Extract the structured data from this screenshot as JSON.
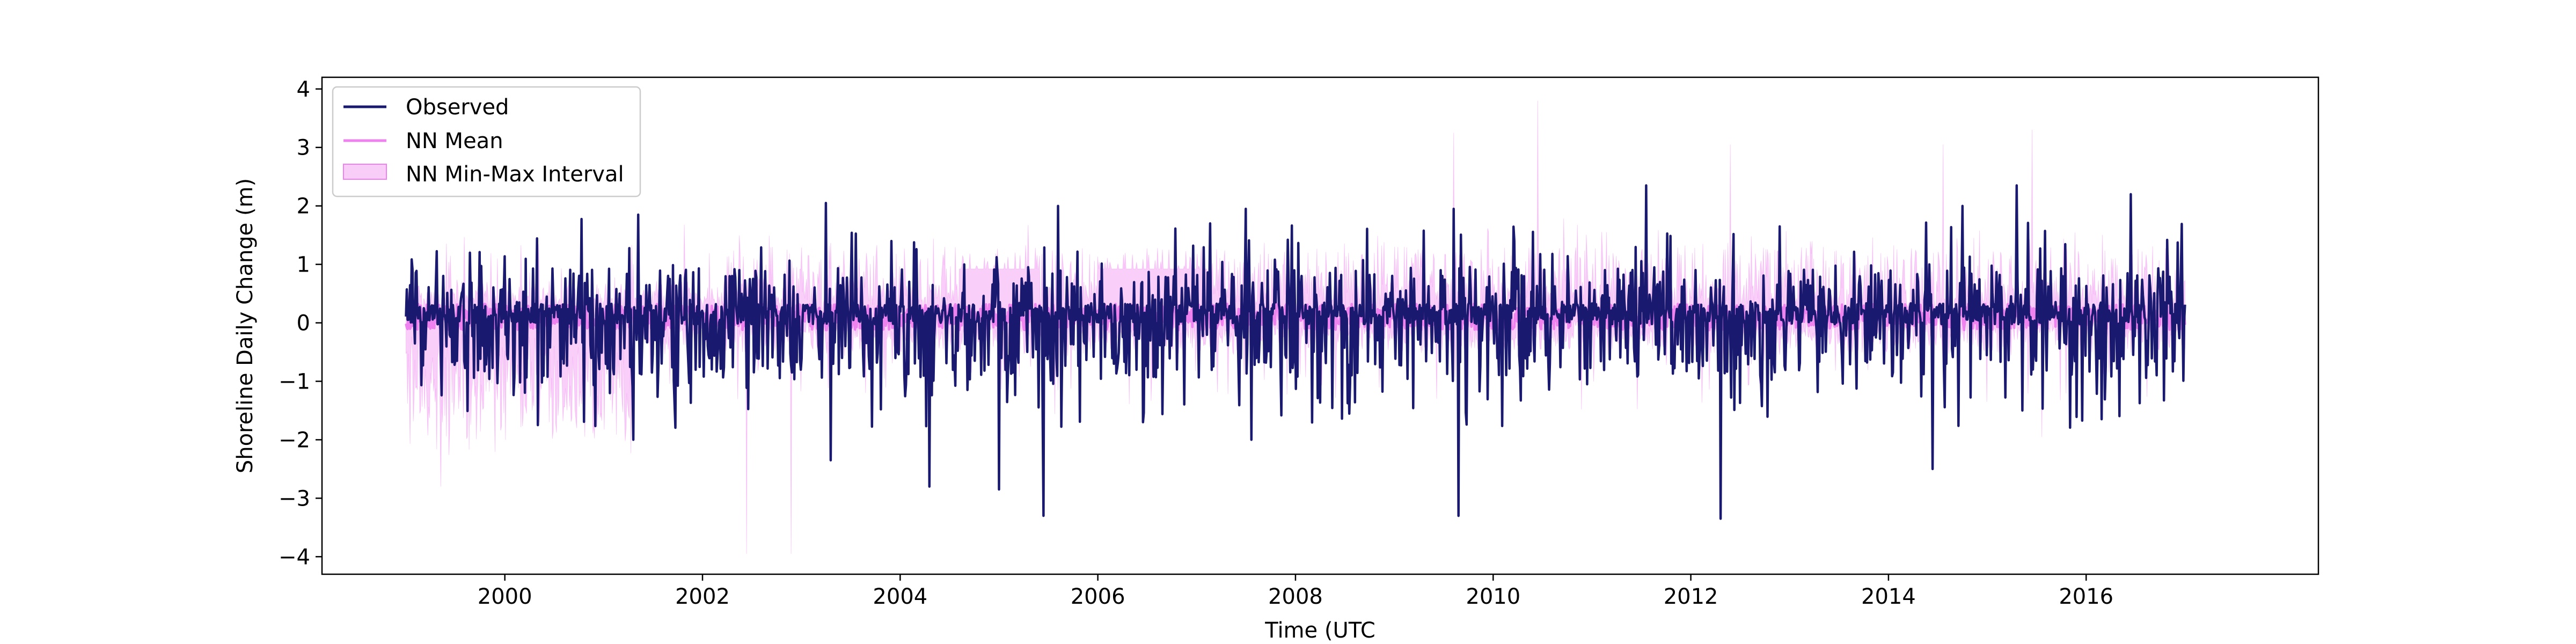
{
  "chart_data": {
    "type": "line",
    "xlabel": "Time (UTC",
    "ylabel": "Shoreline Daily Change (m)",
    "xlim": [
      1998.15,
      2018.35
    ],
    "ylim": [
      -4.3,
      4.2
    ],
    "x_ticks": [
      "2000",
      "2002",
      "2004",
      "2006",
      "2008",
      "2010",
      "2012",
      "2014",
      "2016"
    ],
    "x_tick_values": [
      2000,
      2002,
      2004,
      2006,
      2008,
      2010,
      2012,
      2014,
      2016
    ],
    "y_ticks": [
      "−4",
      "−3",
      "−2",
      "−1",
      "0",
      "1",
      "2",
      "3",
      "4"
    ],
    "y_tick_values": [
      -4,
      -3,
      -2,
      -1,
      0,
      1,
      2,
      3,
      4
    ],
    "grid": false,
    "legend_position": "top-left",
    "series": [
      {
        "name": "Observed",
        "style": "line",
        "color": "#191970"
      },
      {
        "name": "NN Mean",
        "style": "line",
        "color": "#ee82ee"
      },
      {
        "name": "NN Min-Max Interval",
        "style": "band",
        "color": "#ee82ee"
      }
    ],
    "x_range": [
      1999.0,
      2017.0
    ],
    "observed_extremes": [
      {
        "x": 2001.35,
        "y": 1.85
      },
      {
        "x": 2001.3,
        "y": -2.0
      },
      {
        "x": 2003.25,
        "y": 2.05
      },
      {
        "x": 2003.3,
        "y": -2.35
      },
      {
        "x": 2004.3,
        "y": 2.3
      },
      {
        "x": 2004.3,
        "y": -2.8
      },
      {
        "x": 2005.0,
        "y": -2.85
      },
      {
        "x": 2005.6,
        "y": 2.0
      },
      {
        "x": 2005.45,
        "y": -3.3
      },
      {
        "x": 2007.5,
        "y": 1.95
      },
      {
        "x": 2007.55,
        "y": -2.0
      },
      {
        "x": 2009.6,
        "y": 1.95
      },
      {
        "x": 2009.65,
        "y": -3.3
      },
      {
        "x": 2011.55,
        "y": 2.35
      },
      {
        "x": 2012.3,
        "y": -3.35
      },
      {
        "x": 2014.45,
        "y": -2.5
      },
      {
        "x": 2014.75,
        "y": 2.0
      },
      {
        "x": 2015.3,
        "y": 2.35
      },
      {
        "x": 2016.45,
        "y": 2.2
      }
    ],
    "interval_extremes": [
      {
        "x": 1999.35,
        "y": -2.8
      },
      {
        "x": 2002.45,
        "y": -3.95
      },
      {
        "x": 2002.9,
        "y": -3.95
      },
      {
        "x": 2009.6,
        "y": 3.25
      },
      {
        "x": 2010.45,
        "y": 3.8
      },
      {
        "x": 2012.4,
        "y": 3.05
      },
      {
        "x": 2014.55,
        "y": 3.05
      },
      {
        "x": 2015.45,
        "y": 3.3
      },
      {
        "x": 2015.55,
        "y": -1.95
      }
    ],
    "interval_plateaus": [
      {
        "x_start": 2004.6,
        "x_end": 2005.4,
        "upper": 0.92
      },
      {
        "x_start": 2006.0,
        "x_end": 2007.1,
        "upper": 0.92
      }
    ]
  }
}
